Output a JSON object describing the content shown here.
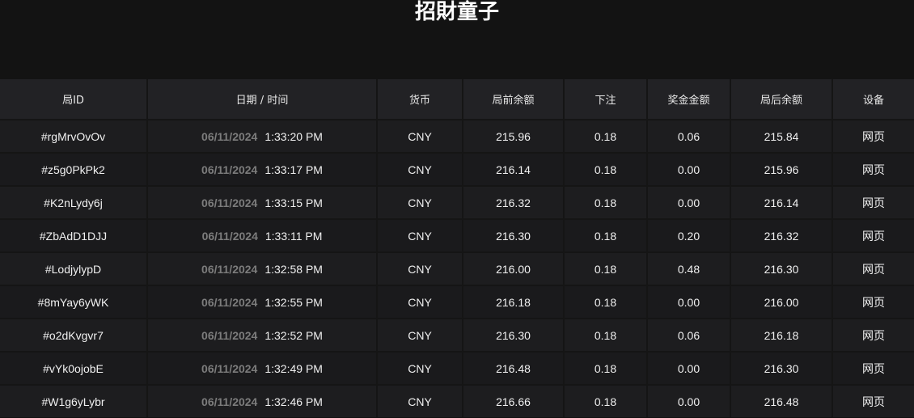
{
  "title": "招財童子",
  "columns": [
    "局ID",
    "日期 / 时间",
    "货币",
    "局前余额",
    "下注",
    "奖金金额",
    "局后余额",
    "设备"
  ],
  "rows": [
    {
      "id": "#rgMrvOvOv",
      "date": "06/11/2024",
      "time": "1:33:20 PM",
      "currency": "CNY",
      "before": "215.96",
      "bet": "0.18",
      "win": "0.06",
      "after": "215.84",
      "device": "网页"
    },
    {
      "id": "#z5g0PkPk2",
      "date": "06/11/2024",
      "time": "1:33:17 PM",
      "currency": "CNY",
      "before": "216.14",
      "bet": "0.18",
      "win": "0.00",
      "after": "215.96",
      "device": "网页"
    },
    {
      "id": "#K2nLydy6j",
      "date": "06/11/2024",
      "time": "1:33:15 PM",
      "currency": "CNY",
      "before": "216.32",
      "bet": "0.18",
      "win": "0.00",
      "after": "216.14",
      "device": "网页"
    },
    {
      "id": "#ZbAdD1DJJ",
      "date": "06/11/2024",
      "time": "1:33:11 PM",
      "currency": "CNY",
      "before": "216.30",
      "bet": "0.18",
      "win": "0.20",
      "after": "216.32",
      "device": "网页"
    },
    {
      "id": "#LodjylypD",
      "date": "06/11/2024",
      "time": "1:32:58 PM",
      "currency": "CNY",
      "before": "216.00",
      "bet": "0.18",
      "win": "0.48",
      "after": "216.30",
      "device": "网页"
    },
    {
      "id": "#8mYay6yWK",
      "date": "06/11/2024",
      "time": "1:32:55 PM",
      "currency": "CNY",
      "before": "216.18",
      "bet": "0.18",
      "win": "0.00",
      "after": "216.00",
      "device": "网页"
    },
    {
      "id": "#o2dKvgvr7",
      "date": "06/11/2024",
      "time": "1:32:52 PM",
      "currency": "CNY",
      "before": "216.30",
      "bet": "0.18",
      "win": "0.06",
      "after": "216.18",
      "device": "网页"
    },
    {
      "id": "#vYk0ojobE",
      "date": "06/11/2024",
      "time": "1:32:49 PM",
      "currency": "CNY",
      "before": "216.48",
      "bet": "0.18",
      "win": "0.00",
      "after": "216.30",
      "device": "网页"
    },
    {
      "id": "#W1g6yLybr",
      "date": "06/11/2024",
      "time": "1:32:46 PM",
      "currency": "CNY",
      "before": "216.66",
      "bet": "0.18",
      "win": "0.00",
      "after": "216.48",
      "device": "网页"
    }
  ]
}
